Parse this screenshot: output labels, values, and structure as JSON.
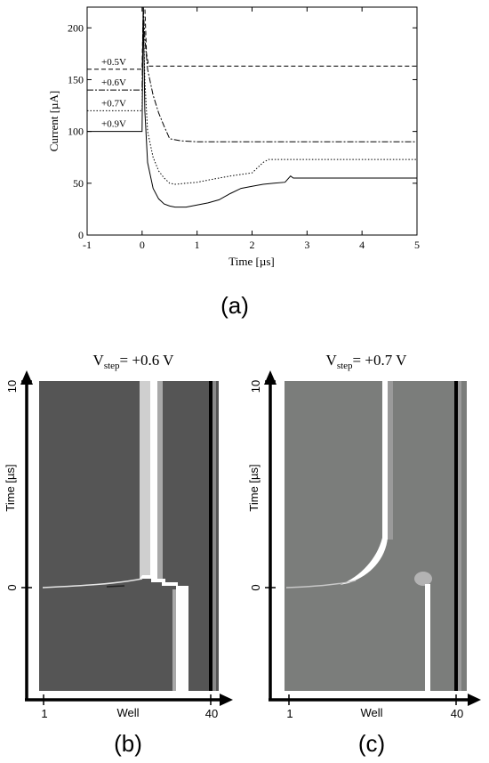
{
  "chart_data": [
    {
      "type": "line",
      "panel_label": "(a)",
      "title": "",
      "xlabel": "Time [µs]",
      "ylabel": "Current [µA]",
      "xlim": [
        -1,
        5
      ],
      "ylim": [
        0,
        220
      ],
      "xticks": [
        -1,
        0,
        1,
        2,
        3,
        4,
        5
      ],
      "yticks": [
        0,
        50,
        100,
        150,
        200
      ],
      "xtick_labels": [
        "-1",
        "0",
        "1",
        "2",
        "3",
        "4",
        "5"
      ],
      "ytick_labels": [
        "0",
        "50",
        "100",
        "150",
        "200"
      ],
      "grid": false,
      "series": [
        {
          "name": "+0.5V",
          "dash": "5,3",
          "x": [
            -1,
            0,
            0.02,
            0.05,
            0.08,
            0.12,
            5
          ],
          "y": [
            160,
            160,
            220,
            220,
            175,
            163,
            163
          ]
        },
        {
          "name": "+0.6V",
          "dash": "7,2,2,2",
          "x": [
            -1,
            0,
            0.02,
            0.05,
            0.1,
            0.2,
            0.3,
            0.4,
            0.5,
            0.7,
            1.0,
            5
          ],
          "y": [
            140,
            140,
            220,
            190,
            160,
            135,
            118,
            105,
            93,
            91,
            90,
            90
          ]
        },
        {
          "name": "+0.7V",
          "dash": "1.5,2",
          "x": [
            -1,
            0,
            0.02,
            0.05,
            0.1,
            0.2,
            0.3,
            0.4,
            0.5,
            0.6,
            0.8,
            1.0,
            1.2,
            1.4,
            1.6,
            2.0,
            2.2,
            2.3,
            5
          ],
          "y": [
            120,
            120,
            220,
            150,
            100,
            75,
            62,
            55,
            50,
            49,
            50,
            51,
            53,
            55,
            57,
            60,
            70,
            73,
            73
          ]
        },
        {
          "name": "+0.9V",
          "dash": "",
          "x": [
            -1,
            0,
            0.02,
            0.05,
            0.1,
            0.2,
            0.3,
            0.4,
            0.5,
            0.6,
            0.8,
            1.0,
            1.2,
            1.4,
            1.6,
            1.8,
            2.0,
            2.2,
            2.4,
            2.6,
            2.7,
            2.75,
            2.8,
            5
          ],
          "y": [
            100,
            100,
            220,
            120,
            70,
            45,
            35,
            30,
            28,
            27,
            27,
            29,
            31,
            34,
            40,
            45,
            47,
            49,
            50,
            51,
            57,
            55,
            55,
            55
          ]
        }
      ],
      "annotations": [
        "+0.5V",
        "+0.6V",
        "+0.7V",
        "+0.9V"
      ]
    },
    {
      "type": "heatmap",
      "panel_label": "(b)",
      "title_main": "V",
      "title_sub": "step",
      "title_rest": "= +0.6 V",
      "xlabel": "Well",
      "ylabel": "Time [µs]",
      "xtick_labels": [
        "1",
        "40"
      ],
      "ytick_labels": [
        "0",
        "10"
      ],
      "background_color": "#555555"
    },
    {
      "type": "heatmap",
      "panel_label": "(c)",
      "title_main": "V",
      "title_sub": "step",
      "title_rest": "= +0.7 V",
      "xlabel": "Well",
      "ylabel": "Time [µs]",
      "xtick_labels": [
        "1",
        "40"
      ],
      "ytick_labels": [
        "0",
        "10"
      ],
      "background_color": "#7b7d7b"
    }
  ]
}
